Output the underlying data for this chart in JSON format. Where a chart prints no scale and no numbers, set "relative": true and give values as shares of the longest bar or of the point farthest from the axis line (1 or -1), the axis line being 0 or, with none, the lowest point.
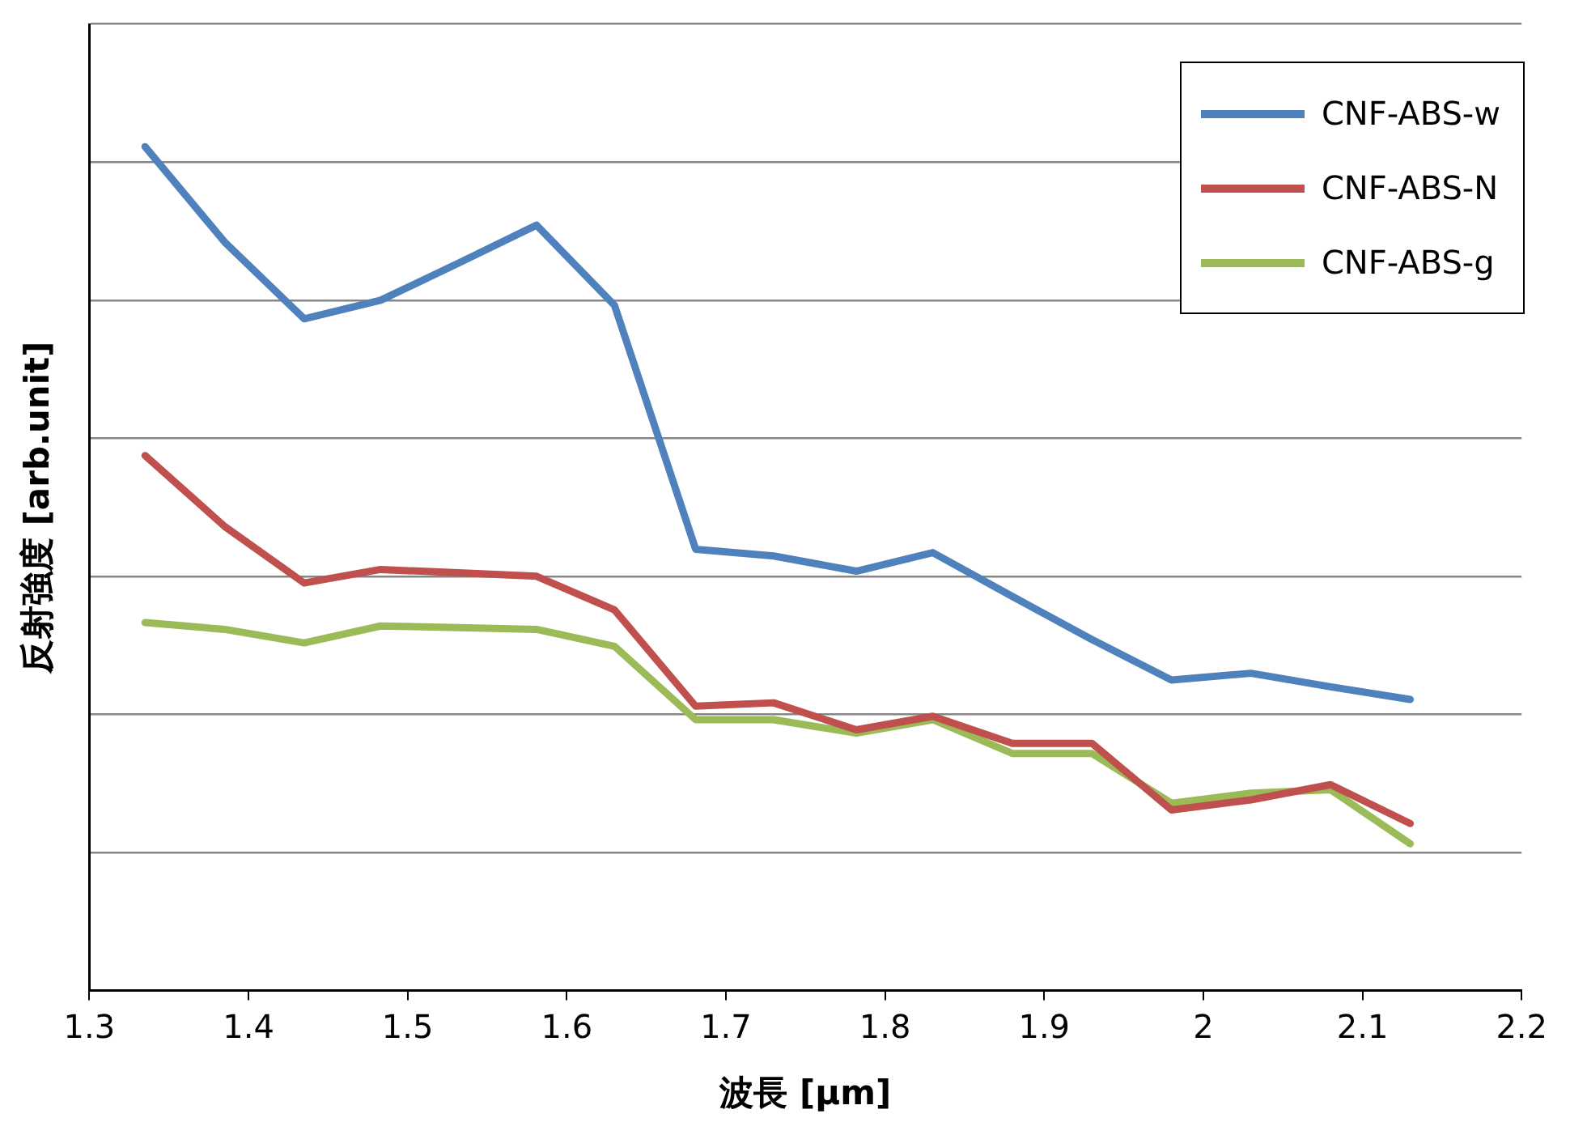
{
  "chart_data": {
    "type": "line",
    "relative": true,
    "xlabel": "波長 [μm]",
    "ylabel": "反射強度 [arb.unit]",
    "xlim": [
      1.3,
      2.2
    ],
    "xticks": [
      1.3,
      1.4,
      1.5,
      1.6,
      1.7,
      1.8,
      1.9,
      2,
      2.1,
      2.2
    ],
    "grid": "y",
    "legend": "top right",
    "marker": "none",
    "line_style": "solid",
    "x": [
      1.335,
      1.385,
      1.435,
      1.483,
      1.532,
      1.581,
      1.63,
      1.681,
      1.73,
      1.782,
      1.83,
      1.88,
      1.93,
      1.98,
      2.03,
      2.08,
      2.13
    ],
    "series": [
      {
        "name": "CNF-ABS-w",
        "color": "#4f81bd",
        "values": [
          1.0,
          0.887,
          0.796,
          0.818,
          0.862,
          0.907,
          0.812,
          0.523,
          0.515,
          0.497,
          0.519,
          0.467,
          0.416,
          0.368,
          0.376,
          0.36,
          0.345
        ]
      },
      {
        "name": "CNF-ABS-N",
        "color": "#c0504d",
        "values": [
          0.634,
          0.55,
          0.483,
          0.499,
          0.495,
          0.491,
          0.451,
          0.337,
          0.341,
          0.309,
          0.325,
          0.293,
          0.293,
          0.214,
          0.226,
          0.244,
          0.198
        ]
      },
      {
        "name": "CNF-ABS-g",
        "color": "#9bbb59",
        "values": [
          0.436,
          0.428,
          0.412,
          0.432,
          0.43,
          0.428,
          0.408,
          0.321,
          0.321,
          0.305,
          0.321,
          0.281,
          0.281,
          0.222,
          0.234,
          0.238,
          0.174
        ]
      }
    ]
  }
}
